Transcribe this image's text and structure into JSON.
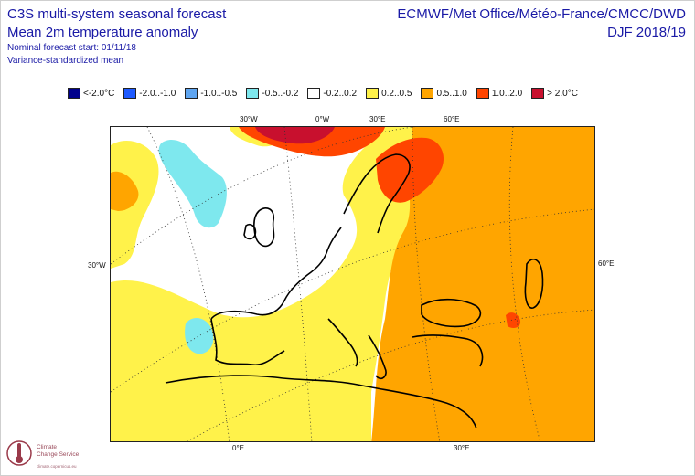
{
  "header": {
    "left": [
      "C3S multi-system seasonal forecast",
      "Mean 2m temperature anomaly",
      "Nominal forecast start: 01/11/18",
      "Variance-standardized mean"
    ],
    "right": [
      "ECMWF/Met Office/Météo-France/CMCC/DWD",
      "DJF 2018/19"
    ]
  },
  "legend": [
    {
      "label": "<-2.0°C",
      "color": "#00008b"
    },
    {
      "label": "-2.0..-1.0",
      "color": "#1e5aff"
    },
    {
      "label": "-1.0..-0.5",
      "color": "#5fa5f0"
    },
    {
      "label": "-0.5..-0.2",
      "color": "#7ee8ee"
    },
    {
      "label": "-0.2..0.2",
      "color": "#ffffff"
    },
    {
      "label": "0.2..0.5",
      "color": "#fff24a"
    },
    {
      "label": "0.5..1.0",
      "color": "#ffa500"
    },
    {
      "label": "1.0..2.0",
      "color": "#ff4500"
    },
    {
      "label": "> 2.0°C",
      "color": "#c8102e"
    }
  ],
  "axis_labels": {
    "top": [
      "30°W",
      "0°W",
      "30°E",
      "60°E"
    ],
    "left": "30°W",
    "right": "60°E",
    "bottom": [
      "0°E",
      "30°E"
    ]
  },
  "logo": {
    "line1": "Climate",
    "line2": "Change Service",
    "tagline": "climate.copernicus.eu",
    "icon": "thermometer-logo-icon"
  }
}
